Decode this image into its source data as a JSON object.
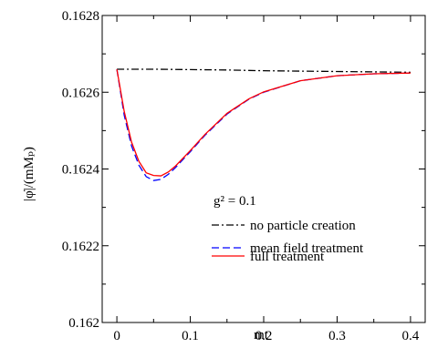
{
  "chart_data": {
    "type": "line",
    "xlabel": "mt",
    "ylabel": "|φ̇|/(mMₚ)",
    "xlim": [
      -0.02,
      0.42
    ],
    "ylim": [
      0.162,
      0.1628
    ],
    "x_ticks": [
      0,
      0.1,
      0.2,
      0.3,
      0.4
    ],
    "x_tick_labels": [
      "0",
      "0.1",
      "0.2",
      "0.3",
      "0.4"
    ],
    "y_ticks": [
      0.162,
      0.1622,
      0.1624,
      0.1626,
      0.1628
    ],
    "y_tick_labels": [
      "0.162",
      "0.1622",
      "0.1624",
      "0.1626",
      "0.1628"
    ],
    "grid": false,
    "legend_placement": "center-right",
    "annotation": "g² = 0.1",
    "series": [
      {
        "name": "no particle creation",
        "style": "dash-dot",
        "color": "#000000",
        "x": [
          0,
          0.05,
          0.1,
          0.15,
          0.2,
          0.25,
          0.3,
          0.35,
          0.4
        ],
        "y": [
          0.16266,
          0.16266,
          0.162659,
          0.162658,
          0.162656,
          0.162655,
          0.162654,
          0.162653,
          0.162652
        ]
      },
      {
        "name": "mean field treatment",
        "style": "dashed",
        "color": "#0000ff",
        "x": [
          0,
          0.01,
          0.02,
          0.03,
          0.04,
          0.05,
          0.06,
          0.07,
          0.08,
          0.1,
          0.12,
          0.15,
          0.18,
          0.2,
          0.25,
          0.3,
          0.35,
          0.4
        ],
        "y": [
          0.16266,
          0.16254,
          0.16246,
          0.16241,
          0.16238,
          0.16237,
          0.162373,
          0.162386,
          0.162404,
          0.162445,
          0.162488,
          0.162543,
          0.162582,
          0.1626,
          0.16263,
          0.162643,
          0.162648,
          0.16265
        ]
      },
      {
        "name": "full treatment",
        "style": "solid",
        "color": "#ff0000",
        "x": [
          0,
          0.01,
          0.02,
          0.03,
          0.04,
          0.05,
          0.06,
          0.07,
          0.08,
          0.1,
          0.12,
          0.15,
          0.18,
          0.2,
          0.25,
          0.3,
          0.35,
          0.4
        ],
        "y": [
          0.16266,
          0.16255,
          0.16247,
          0.16242,
          0.16239,
          0.162383,
          0.162382,
          0.162392,
          0.162408,
          0.162448,
          0.16249,
          0.162545,
          0.162583,
          0.162601,
          0.16263,
          0.162643,
          0.162648,
          0.16265
        ]
      }
    ]
  }
}
